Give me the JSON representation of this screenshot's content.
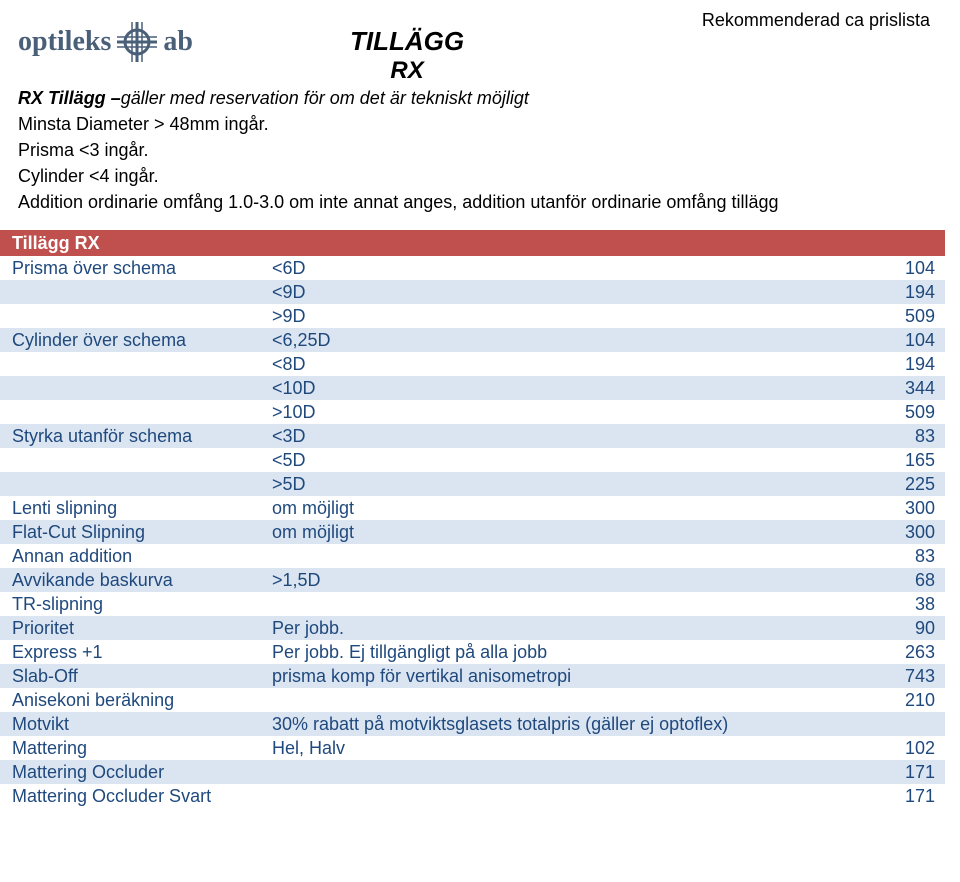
{
  "header_note": "Rekommenderad ca prislista",
  "logo": {
    "left": "optileks",
    "right": "ab"
  },
  "title": {
    "line1": "TILLÄGG",
    "line2": "RX"
  },
  "intro": {
    "line1_bold": "RX Tillägg –",
    "line1_rest": "gäller med reservation för om det är tekniskt möjligt",
    "line2": "Minsta Diameter > 48mm ingår.",
    "line3": "Prisma <3 ingår.",
    "line4": "Cylinder <4 ingår.",
    "line5": "Addition ordinarie omfång 1.0-3.0 om inte annat anges, addition utanför ordinarie omfång tillägg"
  },
  "table": {
    "header": "Tillägg RX",
    "header_bg": "#c0504d",
    "row_alt_bg": "#dbe5f1",
    "row_text_color": "#1f497d",
    "rows": [
      {
        "c1": "Prisma över schema",
        "c2": "<6D",
        "c3": "104"
      },
      {
        "c1": "",
        "c2": "<9D",
        "c3": "194"
      },
      {
        "c1": "",
        "c2": ">9D",
        "c3": "509"
      },
      {
        "c1": "Cylinder över schema",
        "c2": "<6,25D",
        "c3": "104"
      },
      {
        "c1": "",
        "c2": "<8D",
        "c3": "194"
      },
      {
        "c1": "",
        "c2": "<10D",
        "c3": "344"
      },
      {
        "c1": "",
        "c2": ">10D",
        "c3": "509"
      },
      {
        "c1": "Styrka utanför schema",
        "c2": "<3D",
        "c3": "83"
      },
      {
        "c1": "",
        "c2": "<5D",
        "c3": "165"
      },
      {
        "c1": "",
        "c2": ">5D",
        "c3": "225"
      },
      {
        "c1": "Lenti slipning",
        "c2": "om möjligt",
        "c3": "300"
      },
      {
        "c1": "Flat-Cut Slipning",
        "c2": "om möjligt",
        "c3": "300"
      },
      {
        "c1": "Annan addition",
        "c2": "",
        "c3": "83"
      },
      {
        "c1": "Avvikande baskurva",
        "c2": ">1,5D",
        "c3": "68"
      },
      {
        "c1": "TR-slipning",
        "c2": "",
        "c3": "38"
      },
      {
        "c1": "Prioritet",
        "c2": "Per jobb.",
        "c3": "90"
      },
      {
        "c1": "Express +1",
        "c2": "Per jobb. Ej tillgängligt på alla jobb",
        "c3": "263"
      },
      {
        "c1": "Slab-Off",
        "c2": "prisma komp för vertikal anisometropi",
        "c3": "743"
      },
      {
        "c1": "Anisekoni beräkning",
        "c2": "",
        "c3": "210"
      },
      {
        "c1": "Motvikt",
        "c2": "30% rabatt på motviktsglasets totalpris (gäller ej optoflex)",
        "c3": ""
      },
      {
        "c1": "Mattering",
        "c2": "Hel, Halv",
        "c3": "102"
      },
      {
        "c1": "Mattering Occluder",
        "c2": "",
        "c3": "171"
      },
      {
        "c1": "Mattering Occluder Svart",
        "c2": "",
        "c3": "171"
      }
    ]
  }
}
